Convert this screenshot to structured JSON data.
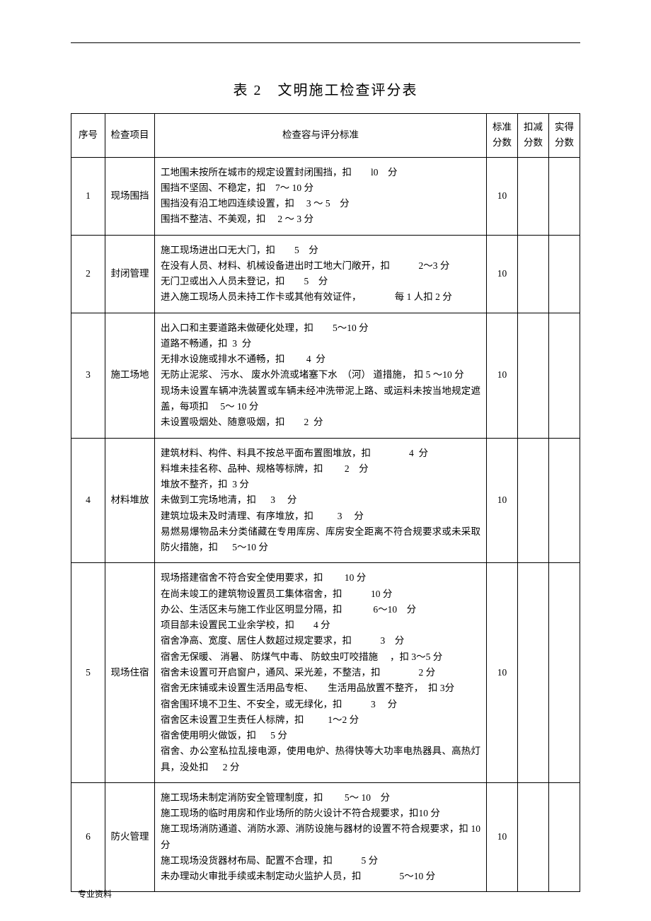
{
  "title": "表 2　文明施工检查评分表",
  "footer": "专业资料",
  "headers": {
    "seq": "序号",
    "item": "检查项目",
    "criteria": "检查容与评分标准",
    "standard_score": "标准分数",
    "deduct_score": "扣减分数",
    "actual_score": "实得分数"
  },
  "rows": [
    {
      "seq": "1",
      "item": "现场围挡",
      "criteria": "工地围未按所在城市的规定设置封闭围挡，扣　　l0　分\n围挡不坚固、不稳定，扣　7～ 10 分\n围挡没有沿工地四连续设置，扣　 3 ～ 5　分\n围挡不整洁、不美观，扣　 2 ～ 3 分",
      "standard_score": "10",
      "deduct_score": "",
      "actual_score": ""
    },
    {
      "seq": "2",
      "item": "封闭管理",
      "criteria": "施工现场进出口无大门，扣　　5　分\n在没有人员、材料、机械设备进出时工地大门敞开，扣　　　2～3 分\n无门卫或出入人员未登记，扣　　5　分\n进入施工现场人员未持工作卡或其他有效证件，　　　　每 1 人扣 2 分",
      "standard_score": "10",
      "deduct_score": "",
      "actual_score": ""
    },
    {
      "seq": "3",
      "item": "施工场地",
      "criteria": "出入口和主要道路未做硬化处理，扣　　5～10 分\n道路不畅通，扣  3  分\n无排水设施或排水不通畅，扣　　 4  分\n无防止泥浆、 污水、 废水外流或堵塞下水　（河） 道措施， 扣 5 ～10 分\n现场未设置车辆冲洗装置或车辆未经冲洗带泥上路、或运料未按当地规定遮盖，每项扣　 5～ 10 分\n未设置吸烟处、随意吸烟，扣　　2  分",
      "standard_score": "10",
      "deduct_score": "",
      "actual_score": ""
    },
    {
      "seq": "4",
      "item": "材料堆放",
      "criteria": "建筑材料、构件、料具不按总平面布置图堆放，扣　　　　4  分\n料堆未挂名称、品种、规格等标牌，扣　　 2　分\n堆放不整齐，扣  3 分\n未做到工完场地清，扣　  3　 分\n建筑垃圾未及时清理、有序堆放，扣　　  3　 分\n易燃易爆物品未分类储藏在专用库房、库房安全距离不符合规要求或未采取防火措施，扣　  5～10 分",
      "standard_score": "10",
      "deduct_score": "",
      "actual_score": ""
    },
    {
      "seq": "5",
      "item": "现场住宿",
      "criteria": "现场搭建宿舍不符合安全使用要求，扣　　 10 分\n在尚未竣工的建筑物设置员工集体宿舍，扣　　　10 分\n办公、生活区未与施工作业区明显分隔，扣　　　 6～10　分\n项目部未设置民工业余学校，扣　　4 分\n宿舍净高、宽度、居住人数超过规定要求，扣　　　3　分\n宿舍无保暖、 消暑、 防煤气中毒、 防蚊虫叮咬措施　 ，扣 3～5 分\n宿舍未设置可开启窗户，通风、采光差，不整洁，扣　　　　2 分\n宿舍无床铺或未设置生活用品专柜、　　生活用品放置不整齐，　扣 3分\n宿舍围环境不卫生、不安全，或无绿化，扣　　　3　 分\n宿舍区未设置卫生责任人标牌，扣　　  1～2 分\n宿舍使用明火做饭，扣　  5 分\n宿舍、办公室私拉乱接电源，使用电炉、热得快等大功率电热器具、高热灯具，没处扣　  2 分",
      "standard_score": "10",
      "deduct_score": "",
      "actual_score": ""
    },
    {
      "seq": "6",
      "item": "防火管理",
      "criteria": "施工现场未制定消防安全管理制度，扣　　 5～ 10　分\n施工现场的临时用房和作业场所的防火设计不符合规要求，扣10 分\n施工现场消防通道、消防水源、消防设施与器材的设置不符合规要求，扣 10 分\n施工现场没货器材布局、配置不合理，扣　　　5 分\n未办理动火审批手续或未制定动火监护人员，扣　　　　5～10 分",
      "standard_score": "10",
      "deduct_score": "",
      "actual_score": ""
    }
  ]
}
